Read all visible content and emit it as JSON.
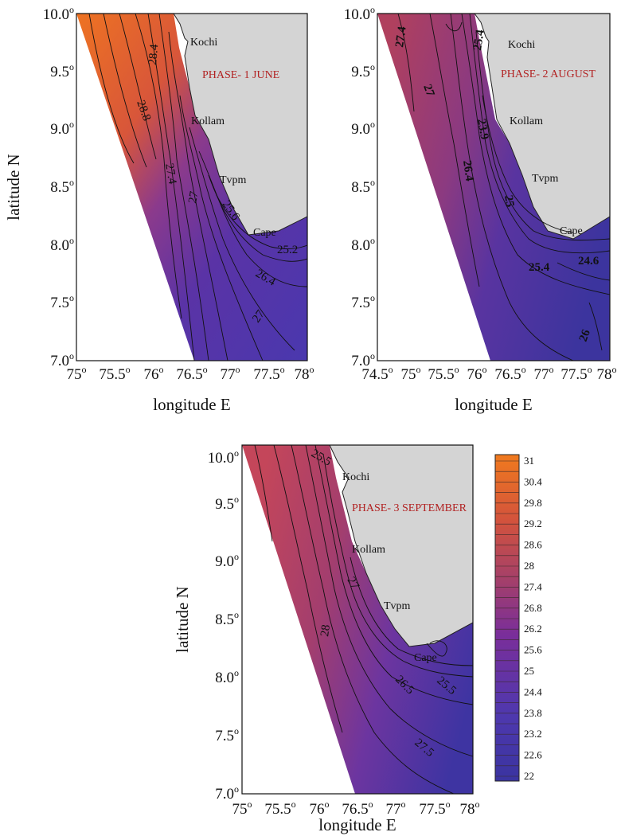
{
  "figure": {
    "axis_x_label": "longitude E",
    "axis_y_label": "latitude N",
    "land_color": "#d4d4d4",
    "contour_color": "#111111"
  },
  "panels": [
    {
      "phase_label": "PHASE- 1  JUNE",
      "x_ticks": [
        "75",
        "75.5",
        "76",
        "76.5",
        "77",
        "77.5",
        "78"
      ],
      "y_ticks": [
        "7.0",
        "7.5",
        "8.0",
        "8.5",
        "9.0",
        "9.5",
        "10.0"
      ],
      "places": [
        "Kochi",
        "Kollam",
        "Tvpm",
        "Cape"
      ],
      "contour_labels": [
        "28.4",
        "28.8",
        "27.4",
        "27",
        "25.6",
        "25.2",
        "26.4",
        "27"
      ]
    },
    {
      "phase_label": "PHASE- 2  AUGUST",
      "x_ticks": [
        "74.5",
        "75",
        "75.5",
        "76",
        "76.5",
        "77",
        "77.5",
        "78"
      ],
      "y_ticks": [
        "7.0",
        "7.5",
        "8.0",
        "8.5",
        "9.0",
        "9.5",
        "10.0"
      ],
      "places": [
        "Kochi",
        "Kollam",
        "Tvpm",
        "Cape"
      ],
      "contour_labels": [
        "27.4",
        "25.4",
        "27",
        "23.9",
        "26.4",
        "25",
        "25.4",
        "24.6",
        "26"
      ]
    },
    {
      "phase_label": "PHASE- 3 SEPTEMBER",
      "x_ticks": [
        "75",
        "75.5",
        "76",
        "76.5",
        "77",
        "77.5",
        "78"
      ],
      "y_ticks": [
        "7.0",
        "7.5",
        "8.0",
        "8.5",
        "9.0",
        "9.5",
        "10.0"
      ],
      "places": [
        "Kochi",
        "Kollam",
        "Tvpm",
        "Cape"
      ],
      "contour_labels": [
        "25.5",
        "27",
        "28",
        "26.5",
        "25.5",
        "27.5"
      ]
    }
  ],
  "colorbar": {
    "ticks": [
      "31",
      "30.4",
      "29.8",
      "29.2",
      "28.6",
      "28",
      "27.4",
      "26.8",
      "26.2",
      "25.6",
      "25",
      "24.4",
      "23.8",
      "23.2",
      "22.6",
      "22"
    ],
    "color_high": "#f07a1e",
    "color_mid": "#7a2e9a",
    "color_low": "#3a34a0"
  }
}
